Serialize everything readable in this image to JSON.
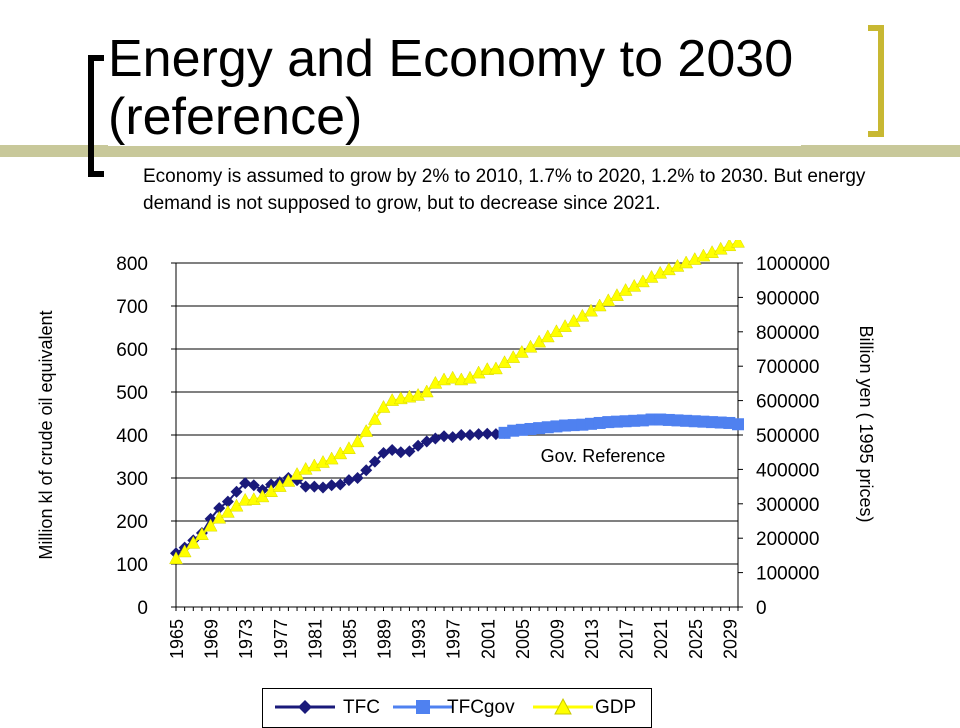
{
  "slide": {
    "title_line1": "Energy and Economy to 2030",
    "title_line2": "(reference)",
    "subtitle": "Economy is assumed to grow by 2% to 2010, 1.7% to 2020, 1.2% to 2030.  But energy demand is not supposed to grow, but to decrease since 2021.",
    "accent_bar_color": "#c8c89a",
    "bracket_left_color": "#000000",
    "bracket_right_color": "#c8b832"
  },
  "chart_data": {
    "type": "line",
    "title": "",
    "ylabel": "Million kl of crude oil equivalent",
    "y2label": "Billion yen ( 1995 prices)",
    "xlim": [
      1965,
      2030
    ],
    "ylim": [
      0,
      800
    ],
    "y2lim": [
      0,
      1000000
    ],
    "yticks": [
      "0",
      "100",
      "200",
      "300",
      "400",
      "500",
      "600",
      "700",
      "800"
    ],
    "y2ticks": [
      "0",
      "100000",
      "200000",
      "300000",
      "400000",
      "500000",
      "600000",
      "700000",
      "800000",
      "900000",
      "1000000"
    ],
    "xticks": [
      "1965",
      "1969",
      "1973",
      "1977",
      "1981",
      "1985",
      "1989",
      "1993",
      "1997",
      "2001",
      "2005",
      "2009",
      "2013",
      "2017",
      "2021",
      "2025",
      "2029"
    ],
    "grid": "horizontal",
    "annotation": "Gov. Reference",
    "legend_position": "bottom",
    "series": [
      {
        "name": "TFC",
        "axis": "left",
        "color": "#1a1a7a",
        "marker": "diamond",
        "x": [
          1965,
          1966,
          1967,
          1968,
          1969,
          1970,
          1971,
          1972,
          1973,
          1974,
          1975,
          1976,
          1977,
          1978,
          1979,
          1980,
          1981,
          1982,
          1983,
          1984,
          1985,
          1986,
          1987,
          1988,
          1989,
          1990,
          1991,
          1992,
          1993,
          1994,
          1995,
          1996,
          1997,
          1998,
          1999,
          2000,
          2001,
          2002,
          2003
        ],
        "values": [
          125,
          138,
          155,
          172,
          205,
          230,
          245,
          268,
          288,
          283,
          272,
          285,
          290,
          300,
          295,
          280,
          280,
          278,
          283,
          285,
          295,
          300,
          318,
          338,
          358,
          365,
          360,
          362,
          375,
          385,
          392,
          397,
          395,
          400,
          400,
          402,
          403,
          402,
          405
        ]
      },
      {
        "name": "TFCgov",
        "axis": "left",
        "color": "#4f81f0",
        "marker": "square",
        "x": [
          2003,
          2004,
          2005,
          2006,
          2007,
          2008,
          2009,
          2010,
          2011,
          2012,
          2013,
          2014,
          2015,
          2016,
          2017,
          2018,
          2019,
          2020,
          2021,
          2022,
          2023,
          2024,
          2025,
          2026,
          2027,
          2028,
          2029,
          2030
        ],
        "values": [
          405,
          410,
          412,
          414,
          416,
          418,
          420,
          422,
          423,
          424,
          426,
          428,
          430,
          431,
          432,
          433,
          434,
          436,
          436,
          435,
          434,
          433,
          432,
          431,
          430,
          429,
          428,
          425
        ]
      },
      {
        "name": "GDP",
        "axis": "right",
        "color": "#ffff00",
        "marker": "triangle",
        "x": [
          1965,
          1966,
          1967,
          1968,
          1969,
          1970,
          1971,
          1972,
          1973,
          1974,
          1975,
          1976,
          1977,
          1978,
          1979,
          1980,
          1981,
          1982,
          1983,
          1984,
          1985,
          1986,
          1987,
          1988,
          1989,
          1990,
          1991,
          1992,
          1993,
          1994,
          1995,
          1996,
          1997,
          1998,
          1999,
          2000,
          2001,
          2002,
          2003,
          2004,
          2005,
          2006,
          2007,
          2008,
          2009,
          2010,
          2011,
          2012,
          2013,
          2014,
          2015,
          2016,
          2017,
          2018,
          2019,
          2020,
          2021,
          2022,
          2023,
          2024,
          2025,
          2026,
          2027,
          2028,
          2029,
          2030
        ],
        "values": [
          140000,
          160000,
          185000,
          210000,
          235000,
          258000,
          275000,
          293000,
          310000,
          312000,
          320000,
          335000,
          350000,
          365000,
          385000,
          400000,
          410000,
          420000,
          430000,
          445000,
          460000,
          480000,
          510000,
          545000,
          580000,
          600000,
          605000,
          610000,
          615000,
          625000,
          650000,
          660000,
          665000,
          660000,
          665000,
          680000,
          690000,
          692000,
          710000,
          725000,
          740000,
          755000,
          770000,
          785000,
          800000,
          815000,
          830000,
          845000,
          860000,
          875000,
          890000,
          905000,
          920000,
          932000,
          945000,
          958000,
          970000,
          980000,
          990000,
          1000000,
          1010000,
          1020000,
          1030000,
          1040000,
          1050000,
          1060000
        ]
      }
    ]
  }
}
